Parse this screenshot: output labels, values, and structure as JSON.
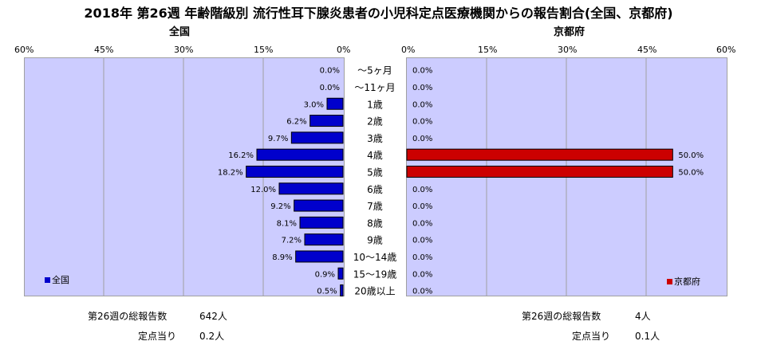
{
  "title": "2018年 第26週 年齢階級別 流行性耳下腺炎患者の小児科定点医療機関からの報告割合(全国、京都府)",
  "chart_data": {
    "type": "bar",
    "orientation": "horizontal-back-to-back",
    "categories": [
      "～5ヶ月",
      "～11ヶ月",
      "1歳",
      "2歳",
      "3歳",
      "4歳",
      "5歳",
      "6歳",
      "7歳",
      "8歳",
      "9歳",
      "10～14歳",
      "15～19歳",
      "20歳以上"
    ],
    "series": [
      {
        "name": "全国",
        "color": "#0000cc",
        "values": [
          0.0,
          0.0,
          3.0,
          6.2,
          9.7,
          16.2,
          18.2,
          12.0,
          9.2,
          8.1,
          7.2,
          8.9,
          0.9,
          0.5
        ],
        "labels": [
          "0.0%",
          "0.0%",
          "3.0%",
          "6.2%",
          "9.7%",
          "16.2%",
          "18.2%",
          "12.0%",
          "9.2%",
          "8.1%",
          "7.2%",
          "8.9%",
          "0.9%",
          "0.5%"
        ]
      },
      {
        "name": "京都府",
        "color": "#cc0000",
        "values": [
          0.0,
          0.0,
          0.0,
          0.0,
          0.0,
          50.0,
          50.0,
          0.0,
          0.0,
          0.0,
          0.0,
          0.0,
          0.0,
          0.0
        ],
        "labels": [
          "0.0%",
          "0.0%",
          "0.0%",
          "0.0%",
          "0.0%",
          "50.0%",
          "50.0%",
          "0.0%",
          "0.0%",
          "0.0%",
          "0.0%",
          "0.0%",
          "0.0%",
          "0.0%"
        ]
      }
    ],
    "left_ticks": [
      "60%",
      "45%",
      "30%",
      "15%",
      "0%"
    ],
    "right_ticks": [
      "0%",
      "15%",
      "30%",
      "45%",
      "60%"
    ],
    "xlim": [
      0,
      60
    ],
    "grid": true,
    "legend_placement": "bottom-inside"
  },
  "panels": {
    "left_title": "全国",
    "right_title": "京都府",
    "left_legend": "全国",
    "right_legend": "京都府"
  },
  "footer": {
    "national_total_label": "第26週の総報告数",
    "national_total_value": "642人",
    "national_per_label": "定点当り",
    "national_per_value": "0.2人",
    "kyoto_total_label": "第26週の総報告数",
    "kyoto_total_value": "4人",
    "kyoto_per_label": "定点当り",
    "kyoto_per_value": "0.1人"
  },
  "colors": {
    "plot_bg": "#ccccff",
    "national_bar": "#0000cc",
    "kyoto_bar": "#cc0000",
    "grid": "#a0a0a0"
  }
}
